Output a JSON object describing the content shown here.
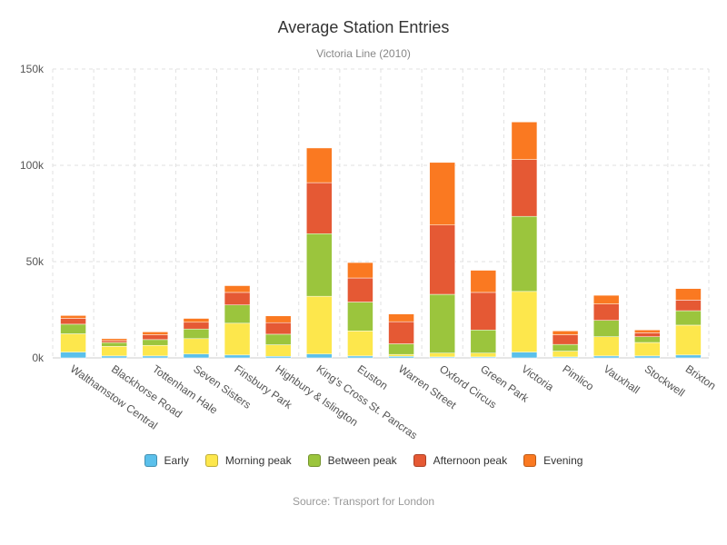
{
  "chart": {
    "title": "Average Station Entries",
    "subtitle": "Victoria Line (2010)",
    "source": "Source: Transport for London"
  },
  "chart_data": {
    "type": "bar",
    "stacked": true,
    "categories": [
      "Walthamstow Central",
      "Blackhorse Road",
      "Tottenham Hale",
      "Seven Sisters",
      "Finsbury Park",
      "Highbury & Islington",
      "King's Cross St. Pancras",
      "Euston",
      "Warren Street",
      "Oxford Circus",
      "Green Park",
      "Victoria",
      "Pimlico",
      "Vauxhall",
      "Stockwell",
      "Brixton"
    ],
    "series": [
      {
        "name": "Early",
        "color": "#5bc0eb",
        "values": [
          3000,
          1000,
          1000,
          2000,
          1500,
          800,
          2000,
          1000,
          800,
          500,
          500,
          3000,
          500,
          1000,
          1000,
          1500
        ]
      },
      {
        "name": "Morning peak",
        "color": "#fde74c",
        "values": [
          9500,
          5000,
          5500,
          8000,
          16500,
          6000,
          30000,
          13000,
          1000,
          2000,
          2000,
          31500,
          3000,
          10000,
          7000,
          15500
        ]
      },
      {
        "name": "Between peak",
        "color": "#9bc53d",
        "values": [
          5000,
          2000,
          3000,
          5000,
          9500,
          5500,
          32500,
          15000,
          5500,
          30500,
          12000,
          39000,
          3500,
          8500,
          3000,
          7500
        ]
      },
      {
        "name": "Afternoon peak",
        "color": "#e55934",
        "values": [
          3000,
          1000,
          2500,
          3500,
          6500,
          6000,
          26500,
          12500,
          11500,
          36000,
          19500,
          29500,
          5000,
          8500,
          2000,
          5500
        ]
      },
      {
        "name": "Evening",
        "color": "#fa7921",
        "values": [
          1500,
          1000,
          1500,
          2000,
          3500,
          3500,
          18000,
          8000,
          4000,
          32500,
          11500,
          19500,
          2000,
          4500,
          1500,
          6000
        ]
      }
    ],
    "y_axis": {
      "min": 0,
      "max": 150000,
      "ticks": [
        0,
        50000,
        100000,
        150000
      ],
      "tick_labels": [
        "0k",
        "50k",
        "100k",
        "150k"
      ]
    },
    "grid": true,
    "legend_position": "bottom"
  }
}
